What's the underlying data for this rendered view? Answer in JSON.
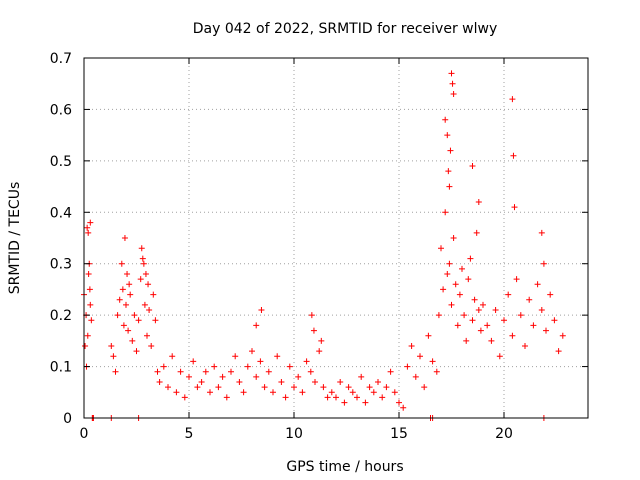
{
  "chart_data": {
    "type": "scatter",
    "title": "Day 042 of 2022, SRMTID for receiver wlwy",
    "xlabel": "GPS time / hours",
    "ylabel": "SRMTID / TECUs",
    "xlim": [
      0,
      24
    ],
    "ylim": [
      0,
      0.7
    ],
    "xticks": [
      0,
      5,
      10,
      15,
      20
    ],
    "yticks": [
      0,
      0.1,
      0.2,
      0.3,
      0.4,
      0.5,
      0.6,
      0.7
    ],
    "xtick_labels": [
      "0",
      "5",
      "10",
      "15",
      "20"
    ],
    "ytick_labels": [
      "0",
      "0.1",
      "0.2",
      "0.3",
      "0.4",
      "0.5",
      "0.6",
      "0.7"
    ],
    "grid": true,
    "marker": "+",
    "series": [
      {
        "name": "SRMTID",
        "color": "#ff0000",
        "x": [
          0.0,
          0.1,
          0.15,
          0.2,
          0.25,
          0.3,
          0.35,
          0.05,
          0.12,
          0.22,
          0.3,
          0.28,
          0.18,
          0.4,
          0.45,
          1.3,
          1.4,
          1.5,
          1.6,
          1.7,
          1.8,
          1.85,
          1.9,
          2.0,
          2.1,
          2.2,
          2.3,
          2.4,
          2.5,
          2.6,
          2.7,
          2.8,
          2.9,
          3.0,
          3.1,
          3.2,
          3.3,
          3.4,
          3.5,
          1.95,
          2.05,
          2.15,
          2.75,
          2.85,
          2.95,
          3.05,
          3.6,
          3.8,
          4.0,
          4.2,
          4.4,
          4.6,
          4.8,
          5.0,
          5.2,
          5.4,
          5.6,
          5.8,
          6.0,
          6.2,
          6.4,
          6.6,
          6.8,
          7.0,
          7.2,
          7.4,
          7.6,
          7.8,
          8.0,
          8.2,
          8.4,
          8.6,
          8.8,
          9.0,
          9.2,
          9.4,
          9.6,
          9.8,
          10.0,
          10.2,
          10.4,
          10.6,
          10.8,
          11.0,
          11.2,
          11.4,
          11.6,
          8.2,
          8.45,
          10.85,
          10.95,
          11.3,
          11.8,
          12.0,
          12.2,
          12.4,
          12.6,
          12.8,
          13.0,
          13.2,
          13.4,
          13.6,
          13.8,
          14.0,
          14.2,
          14.4,
          14.6,
          14.8,
          15.0,
          15.2,
          15.4,
          15.6,
          15.8,
          16.0,
          16.2,
          16.4,
          16.6,
          16.8,
          16.9,
          17.0,
          17.1,
          17.2,
          17.3,
          17.4,
          17.5,
          17.6,
          17.7,
          17.8,
          17.9,
          18.0,
          18.1,
          18.2,
          18.3,
          18.4,
          18.5,
          18.6,
          18.7,
          18.8,
          18.9,
          19.0,
          17.5,
          17.55,
          17.6,
          17.2,
          17.3,
          17.35,
          17.4,
          17.45,
          18.5,
          18.8,
          19.2,
          19.4,
          19.6,
          19.8,
          20.0,
          20.2,
          20.4,
          20.6,
          20.8,
          21.0,
          21.2,
          21.4,
          21.6,
          21.8,
          22.0,
          22.2,
          22.4,
          22.6,
          22.8,
          20.4,
          20.45,
          20.5,
          21.8,
          21.9,
          0.4,
          1.3,
          2.6,
          16.5,
          16.6,
          21.9
        ],
        "y": [
          0.24,
          0.2,
          0.37,
          0.36,
          0.3,
          0.22,
          0.19,
          0.14,
          0.1,
          0.28,
          0.38,
          0.25,
          0.16,
          0.0,
          0.0,
          0.14,
          0.12,
          0.09,
          0.2,
          0.23,
          0.3,
          0.25,
          0.18,
          0.22,
          0.17,
          0.24,
          0.15,
          0.2,
          0.13,
          0.19,
          0.27,
          0.31,
          0.22,
          0.16,
          0.21,
          0.14,
          0.24,
          0.19,
          0.09,
          0.35,
          0.28,
          0.26,
          0.33,
          0.3,
          0.28,
          0.26,
          0.07,
          0.1,
          0.06,
          0.12,
          0.05,
          0.09,
          0.04,
          0.08,
          0.11,
          0.06,
          0.07,
          0.09,
          0.05,
          0.1,
          0.06,
          0.08,
          0.04,
          0.09,
          0.12,
          0.07,
          0.05,
          0.1,
          0.13,
          0.08,
          0.11,
          0.06,
          0.09,
          0.05,
          0.12,
          0.07,
          0.04,
          0.1,
          0.06,
          0.08,
          0.05,
          0.11,
          0.09,
          0.07,
          0.13,
          0.06,
          0.04,
          0.18,
          0.21,
          0.2,
          0.17,
          0.15,
          0.05,
          0.04,
          0.07,
          0.03,
          0.06,
          0.05,
          0.04,
          0.08,
          0.03,
          0.06,
          0.05,
          0.07,
          0.04,
          0.06,
          0.09,
          0.05,
          0.03,
          0.02,
          0.1,
          0.14,
          0.08,
          0.12,
          0.06,
          0.16,
          0.11,
          0.09,
          0.2,
          0.33,
          0.25,
          0.4,
          0.28,
          0.3,
          0.22,
          0.35,
          0.26,
          0.18,
          0.24,
          0.29,
          0.2,
          0.15,
          0.27,
          0.31,
          0.19,
          0.23,
          0.36,
          0.21,
          0.17,
          0.22,
          0.67,
          0.65,
          0.63,
          0.58,
          0.55,
          0.48,
          0.45,
          0.52,
          0.49,
          0.42,
          0.18,
          0.15,
          0.21,
          0.12,
          0.19,
          0.24,
          0.16,
          0.27,
          0.2,
          0.14,
          0.23,
          0.18,
          0.26,
          0.21,
          0.17,
          0.24,
          0.19,
          0.13,
          0.16,
          0.62,
          0.51,
          0.41,
          0.36,
          0.3,
          0.0,
          0.0,
          0.0,
          0.0,
          0.0,
          0.0
        ]
      }
    ]
  }
}
